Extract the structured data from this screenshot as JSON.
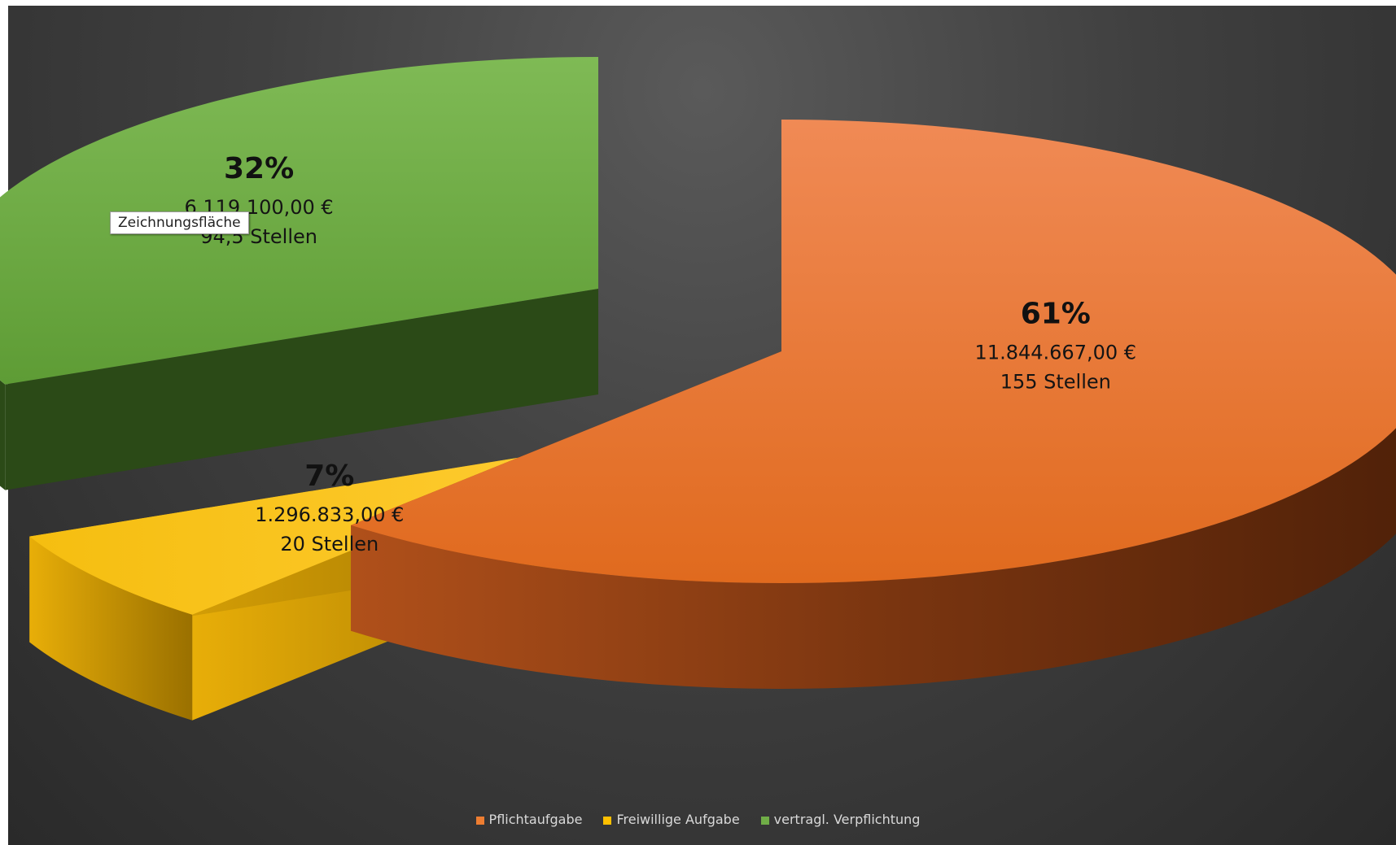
{
  "chart_data": {
    "type": "pie",
    "title": "",
    "categories": [
      "Pflichtaufgabe",
      "Freiwillige Aufgabe",
      "vertragl. Verpflichtung"
    ],
    "values": [
      11844667.0,
      1296833.0,
      6119100.0
    ],
    "series": [
      {
        "name": "Pflichtaufgabe",
        "value": 11844667.0,
        "percent_label": "61%",
        "amount_label": "11.844.667,00 €",
        "stellen_label": "155 Stellen",
        "color": "#ED7D31"
      },
      {
        "name": "Freiwillige Aufgabe",
        "value": 1296833.0,
        "percent_label": "7%",
        "amount_label": "1.296.833,00 €",
        "stellen_label": "20 Stellen",
        "color": "#FFC000"
      },
      {
        "name": "vertragl. Verpflichtung",
        "value": 6119100.0,
        "percent_label": "32%",
        "amount_label": "6.119.100,00 €",
        "stellen_label": "94,5 Stellen",
        "color": "#70AD47"
      }
    ],
    "legend_position": "bottom",
    "style": "3d-exploded"
  },
  "tooltip_text": "Zeichnungsfläche"
}
